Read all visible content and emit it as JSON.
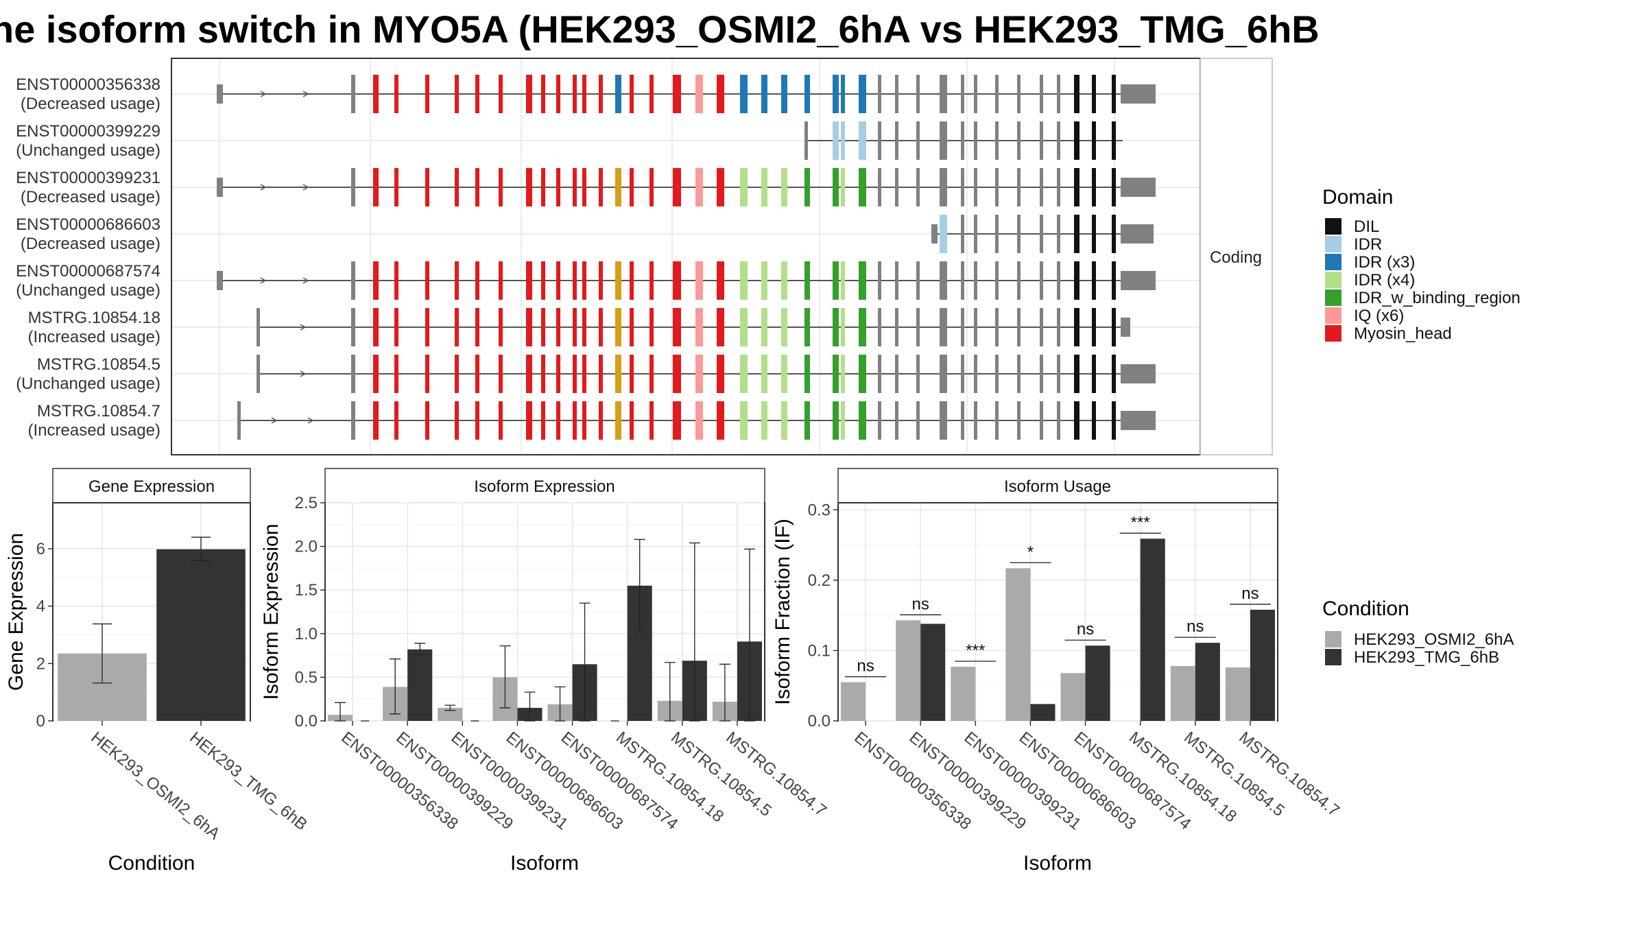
{
  "title": "he isoform switch in MYO5A (HEK293_OSMI2_6hA vs HEK293_TMG_6hB",
  "colors": {
    "DIL": "#111111",
    "IDR": "#a6cee3",
    "IDR (x3)": "#1f78b4",
    "IDR (x4)": "#b2df8a",
    "IDR_w_binding_region": "#33a02c",
    "IQ (x6)": "#fb9a99",
    "Myosin_head": "#e31a1c",
    "exon": "#808080",
    "condA": "#aaaaaa",
    "condB": "#333333"
  },
  "structure": {
    "facet_label": "Coding",
    "isoforms": [
      {
        "id": "ENST00000356338",
        "usage": "(Decreased usage)"
      },
      {
        "id": "ENST00000399229",
        "usage": "(Unchanged usage)"
      },
      {
        "id": "ENST00000399231",
        "usage": "(Decreased usage)"
      },
      {
        "id": "ENST00000686603",
        "usage": "(Decreased usage)"
      },
      {
        "id": "ENST00000687574",
        "usage": "(Unchanged usage)"
      },
      {
        "id": "MSTRG.10854.18",
        "usage": "(Increased usage)"
      },
      {
        "id": "MSTRG.10854.5",
        "usage": "(Unchanged usage)"
      },
      {
        "id": "MSTRG.10854.7",
        "usage": "(Increased usage)"
      }
    ]
  },
  "legend_domain": {
    "title": "Domain",
    "items": [
      "DIL",
      "IDR",
      "IDR (x3)",
      "IDR (x4)",
      "IDR_w_binding_region",
      "IQ (x6)",
      "Myosin_head"
    ]
  },
  "legend_condition": {
    "title": "Condition",
    "items": [
      "HEK293_OSMI2_6hA",
      "HEK293_TMG_6hB"
    ]
  },
  "chart_data": [
    {
      "type": "bar",
      "title": "Gene Expression",
      "xlabel": "Condition",
      "ylabel": "Gene Expression",
      "ylim": [
        0,
        7.6
      ],
      "yticks": [
        0,
        2,
        4,
        6
      ],
      "categories": [
        "HEK293_OSMI2_6hA",
        "HEK293_TMG_6hB"
      ],
      "values": [
        2.35,
        5.98
      ],
      "err_low": [
        1.32,
        5.58
      ],
      "err_high": [
        3.38,
        6.4
      ]
    },
    {
      "type": "bar",
      "title": "Isoform Expression",
      "xlabel": "Isoform",
      "ylabel": "Isoform Expression",
      "ylim": [
        0,
        2.5
      ],
      "yticks": [
        0.0,
        0.5,
        1.0,
        1.5,
        2.0,
        2.5
      ],
      "categories": [
        "ENST00000356338",
        "ENST00000399229",
        "ENST00000399231",
        "ENST00000686603",
        "ENST00000687574",
        "MSTRG.10854.18",
        "MSTRG.10854.5",
        "MSTRG.10854.7"
      ],
      "series": [
        {
          "name": "HEK293_OSMI2_6hA",
          "values": [
            0.07,
            0.39,
            0.15,
            0.5,
            0.19,
            0.0,
            0.23,
            0.22
          ],
          "err_low": [
            0.0,
            0.08,
            0.12,
            0.15,
            0.0,
            0.0,
            0.0,
            0.0
          ],
          "err_high": [
            0.21,
            0.71,
            0.18,
            0.86,
            0.39,
            0.0,
            0.67,
            0.65
          ]
        },
        {
          "name": "HEK293_TMG_6hB",
          "values": [
            0.0,
            0.82,
            0.0,
            0.15,
            0.65,
            1.55,
            0.69,
            0.91
          ],
          "err_low": [
            0.0,
            0.76,
            0.0,
            0.0,
            0.0,
            1.02,
            0.0,
            0.0
          ],
          "err_high": [
            0.0,
            0.89,
            0.0,
            0.33,
            1.35,
            2.08,
            2.04,
            1.97
          ]
        }
      ]
    },
    {
      "type": "bar",
      "title": "Isoform Usage",
      "xlabel": "Isoform",
      "ylabel": "Isoform Fraction (IF)",
      "ylim": [
        0,
        0.31
      ],
      "yticks": [
        0.0,
        0.1,
        0.2,
        0.3
      ],
      "categories": [
        "ENST00000356338",
        "ENST00000399229",
        "ENST00000399231",
        "ENST00000686603",
        "ENST00000687574",
        "MSTRG.10854.18",
        "MSTRG.10854.5",
        "MSTRG.10854.7"
      ],
      "series": [
        {
          "name": "HEK293_OSMI2_6hA",
          "values": [
            0.055,
            0.143,
            0.077,
            0.217,
            0.068,
            0.0,
            0.078,
            0.076
          ]
        },
        {
          "name": "HEK293_TMG_6hB",
          "values": [
            0.0,
            0.138,
            0.0,
            0.024,
            0.107,
            0.259,
            0.111,
            0.158
          ]
        }
      ],
      "significance": [
        "ns",
        "ns",
        "***",
        "*",
        "ns",
        "***",
        "ns",
        "ns"
      ]
    }
  ]
}
